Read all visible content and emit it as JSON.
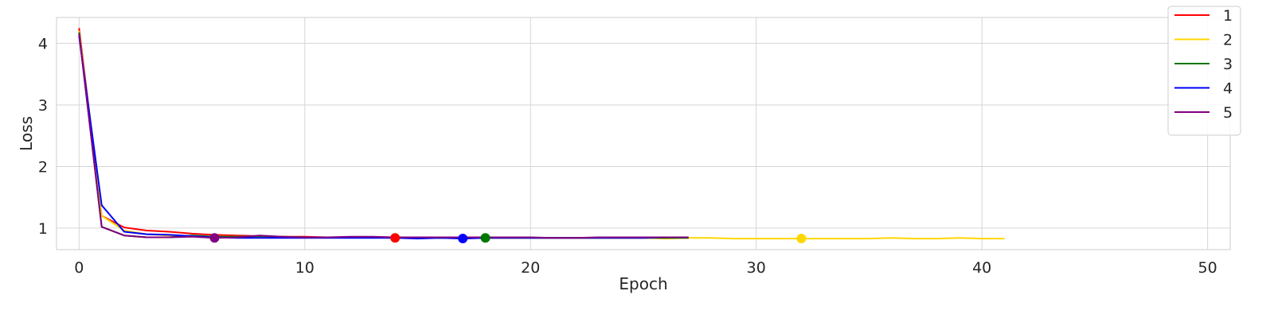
{
  "chart_data": {
    "type": "line",
    "title": "",
    "xlabel": "Epoch",
    "ylabel": "Loss",
    "xlim": [
      -1,
      51
    ],
    "ylim": [
      0.65,
      4.42
    ],
    "xticks": [
      0,
      10,
      20,
      30,
      40,
      50
    ],
    "yticks": [
      1,
      2,
      3,
      4
    ],
    "grid": true,
    "legend_position": "top-right",
    "series": [
      {
        "name": "1",
        "color": "#ff0000",
        "x": [
          0,
          1,
          2,
          3,
          4,
          5,
          6,
          7,
          8,
          9,
          10,
          11,
          12,
          13,
          14,
          15,
          16,
          17,
          18,
          19,
          20,
          21,
          22,
          23,
          24,
          25,
          26,
          27
        ],
        "y": [
          4.25,
          1.2,
          1.01,
          0.96,
          0.94,
          0.91,
          0.89,
          0.88,
          0.87,
          0.86,
          0.86,
          0.85,
          0.85,
          0.85,
          0.84,
          0.84,
          0.84,
          0.84,
          0.84,
          0.84,
          0.84,
          0.84,
          0.84,
          0.84,
          0.84,
          0.84,
          0.84,
          0.84
        ],
        "marker": {
          "x": 14,
          "y": 0.84
        }
      },
      {
        "name": "2",
        "color": "#ffd700",
        "x": [
          0,
          1,
          2,
          3,
          4,
          5,
          6,
          7,
          8,
          9,
          10,
          11,
          12,
          13,
          14,
          15,
          16,
          17,
          18,
          19,
          20,
          21,
          22,
          23,
          24,
          25,
          26,
          27,
          28,
          29,
          30,
          31,
          32,
          33,
          34,
          35,
          36,
          37,
          38,
          39,
          40,
          41
        ],
        "y": [
          4.2,
          1.2,
          0.96,
          0.9,
          0.88,
          0.87,
          0.86,
          0.86,
          0.86,
          0.85,
          0.85,
          0.85,
          0.85,
          0.85,
          0.84,
          0.84,
          0.84,
          0.84,
          0.84,
          0.84,
          0.84,
          0.84,
          0.84,
          0.84,
          0.84,
          0.84,
          0.83,
          0.84,
          0.84,
          0.83,
          0.83,
          0.83,
          0.83,
          0.83,
          0.83,
          0.83,
          0.84,
          0.83,
          0.83,
          0.84,
          0.83,
          0.83
        ],
        "marker": {
          "x": 32,
          "y": 0.83
        }
      },
      {
        "name": "3",
        "color": "#007700",
        "x": [
          0,
          1,
          2,
          3,
          4,
          5,
          6,
          7,
          8,
          9,
          10,
          11,
          12,
          13,
          14,
          15,
          16,
          17,
          18,
          19,
          20,
          21,
          22,
          23,
          24,
          25,
          26,
          27
        ],
        "y": [
          4.18,
          1.02,
          0.88,
          0.85,
          0.85,
          0.88,
          0.86,
          0.86,
          0.87,
          0.86,
          0.85,
          0.85,
          0.85,
          0.85,
          0.85,
          0.84,
          0.84,
          0.84,
          0.84,
          0.84,
          0.84,
          0.84,
          0.84,
          0.84,
          0.84,
          0.84,
          0.84,
          0.84
        ],
        "marker": {
          "x": 18,
          "y": 0.84
        }
      },
      {
        "name": "4",
        "color": "#0000ff",
        "x": [
          0,
          1,
          2,
          3,
          4,
          5,
          6,
          7,
          8,
          9,
          10,
          11,
          12,
          13,
          14,
          15,
          16,
          17,
          18,
          19,
          20,
          21,
          22,
          23,
          24,
          25,
          26,
          27
        ],
        "y": [
          4.12,
          1.37,
          0.94,
          0.9,
          0.89,
          0.87,
          0.85,
          0.84,
          0.84,
          0.84,
          0.84,
          0.84,
          0.84,
          0.84,
          0.84,
          0.83,
          0.84,
          0.83,
          0.84,
          0.84,
          0.84,
          0.84,
          0.84,
          0.84,
          0.84,
          0.84,
          0.85,
          0.85
        ],
        "marker": {
          "x": 17,
          "y": 0.83
        }
      },
      {
        "name": "5",
        "color": "#800080",
        "x": [
          0,
          1,
          2,
          3,
          4,
          5,
          6,
          7,
          8,
          9,
          10,
          11,
          12,
          13,
          14,
          15,
          16,
          17,
          18,
          19,
          20,
          21,
          22,
          23,
          24,
          25,
          26,
          27
        ],
        "y": [
          4.16,
          1.02,
          0.88,
          0.85,
          0.85,
          0.86,
          0.84,
          0.85,
          0.88,
          0.86,
          0.85,
          0.85,
          0.86,
          0.86,
          0.85,
          0.85,
          0.85,
          0.85,
          0.85,
          0.85,
          0.85,
          0.84,
          0.84,
          0.85,
          0.85,
          0.85,
          0.85,
          0.85
        ],
        "marker": {
          "x": 6,
          "y": 0.84
        }
      }
    ]
  }
}
